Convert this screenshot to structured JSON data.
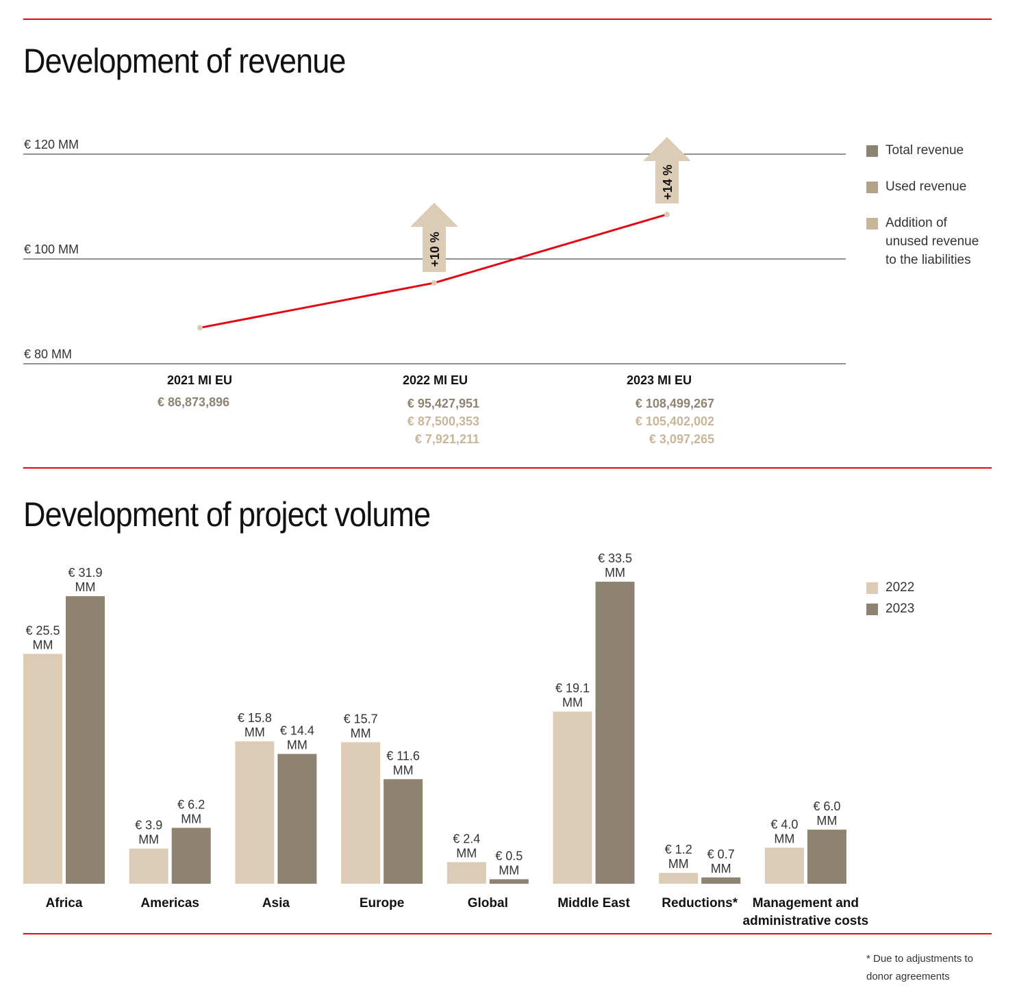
{
  "colors": {
    "red": "#e30613",
    "total": "#8e8270",
    "used": "#b3a386",
    "addition": "#c9b598",
    "c2022": "#dccbb5",
    "c2023": "#8e8270",
    "arrow": "#dccbb5"
  },
  "revenue": {
    "title": "Development of revenue",
    "legend": [
      {
        "label": "Total revenue",
        "color": "#8e8270"
      },
      {
        "label": "Used revenue",
        "color": "#b3a386"
      },
      {
        "label": "Addition of unused revenue to the liabilities",
        "color": "#c9b598"
      }
    ],
    "years": [
      {
        "label": "2021 MI EU",
        "total": "€ 86,873,896"
      },
      {
        "label": "2022 MI EU",
        "total": "€ 95,427,951",
        "used": "€ 87,500,353",
        "addition": "€ 7,921,211"
      },
      {
        "label": "2023 MI EU",
        "total": "€ 108,499,267",
        "used": "€ 105,402,002",
        "addition": "€ 3,097,265"
      }
    ],
    "growth": [
      "+10 %",
      "+14 %"
    ]
  },
  "volume": {
    "title": "Development of project volume",
    "legend": [
      "2022",
      "2023"
    ],
    "footnote": "* Due to adjustments to donor agreements"
  },
  "chart_data": [
    {
      "type": "line",
      "title": "Development of revenue",
      "ylabel": "",
      "ylim": [
        80,
        120
      ],
      "yticks": [
        "€ 80 MM",
        "€ 100 MM",
        "€ 120 MM"
      ],
      "ytick_values": [
        80,
        100,
        120
      ],
      "x": [
        "2021",
        "2022",
        "2023"
      ],
      "series": [
        {
          "name": "Total revenue",
          "values": [
            86.873896,
            95.427951,
            108.499267
          ]
        }
      ]
    },
    {
      "type": "bar",
      "title": "Development of project volume",
      "ylim": [
        0,
        35
      ],
      "categories": [
        "Africa",
        "Americas",
        "Asia",
        "Europe",
        "Global",
        "Middle East",
        "Reductions*",
        "Management and administrative costs"
      ],
      "series": [
        {
          "name": "2022",
          "values": [
            25.5,
            3.9,
            15.8,
            15.7,
            2.4,
            19.1,
            1.2,
            4.0
          ],
          "labels": [
            "€ 25.5 MM",
            "€ 3.9 MM",
            "€ 15.8 MM",
            "€ 15.7 MM",
            "€ 2.4 MM",
            "€ 19.1 MM",
            "€ 1.2 MM",
            "€ 4.0 MM"
          ]
        },
        {
          "name": "2023",
          "values": [
            31.9,
            6.2,
            14.4,
            11.6,
            0.5,
            33.5,
            0.7,
            6.0
          ],
          "labels": [
            "€ 31.9 MM",
            "€ 6.2 MM",
            "€ 14.4 MM",
            "€ 11.6 MM",
            "€ 0.5 MM",
            "€ 33.5 MM",
            "€ 0.7 MM",
            "€ 6.0 MM"
          ]
        }
      ]
    }
  ]
}
